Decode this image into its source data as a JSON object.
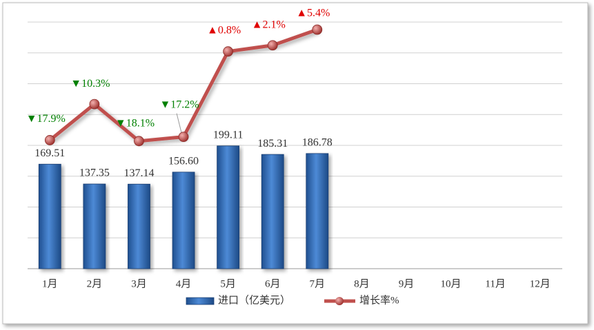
{
  "chart_data": {
    "type": "bar-line",
    "categories": [
      "1月",
      "2月",
      "3月",
      "4月",
      "5月",
      "6月",
      "7月",
      "8月",
      "9月",
      "10月",
      "11月",
      "12月"
    ],
    "series": [
      {
        "name": "进口（亿美元）",
        "type": "bar",
        "color": "#3a78c8",
        "values": [
          169.51,
          137.35,
          137.14,
          156.6,
          199.11,
          185.31,
          186.78,
          null,
          null,
          null,
          null,
          null
        ],
        "value_labels": [
          "169.51",
          "137.35",
          "137.14",
          "156.60",
          "199.11",
          "185.31",
          "186.78",
          null,
          null,
          null,
          null,
          null
        ]
      },
      {
        "name": "增长率%",
        "type": "line",
        "axis": "y2",
        "color": "#c0504d",
        "values": [
          -17.9,
          -10.3,
          -18.1,
          -17.2,
          0.8,
          2.1,
          5.4,
          null,
          null,
          null,
          null,
          null
        ],
        "value_labels": [
          "▼17.9%",
          "▼10.3%",
          "▼18.1%",
          "▼17.2%",
          "▲0.8%",
          "▲2.1%",
          "▲5.4%",
          null,
          null,
          null,
          null,
          null
        ],
        "value_label_colors": [
          "#008000",
          "#008000",
          "#008000",
          "#008000",
          "#e00000",
          "#e00000",
          "#e00000",
          null,
          null,
          null,
          null,
          null
        ]
      }
    ],
    "ylim": [
      0,
      400
    ],
    "yticks": [
      0,
      50,
      100,
      150,
      200,
      250,
      300,
      350,
      400
    ],
    "y2lim": [
      -45,
      7
    ],
    "grid": true
  }
}
